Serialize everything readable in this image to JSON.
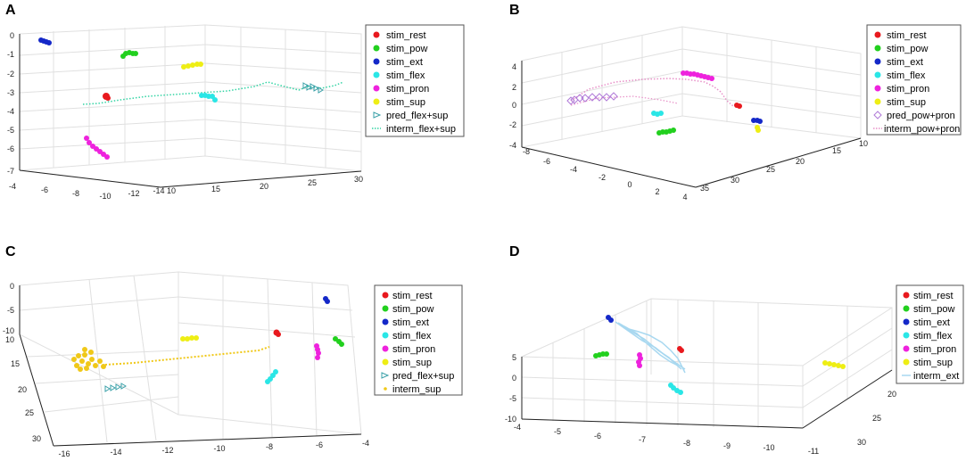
{
  "figure": {
    "description_labels": [
      "A",
      "B",
      "C",
      "D"
    ]
  },
  "chart_data": [
    {
      "panel": "A",
      "type": "scatter3d",
      "legend_position": "right",
      "legend": [
        {
          "label": "stim_rest",
          "color": "#e8191e",
          "marker": "dot"
        },
        {
          "label": "stim_pow",
          "color": "#22d01e",
          "marker": "dot"
        },
        {
          "label": "stim_ext",
          "color": "#1428c8",
          "marker": "dot"
        },
        {
          "label": "stim_flex",
          "color": "#2ae6e6",
          "marker": "dot"
        },
        {
          "label": "stim_pron",
          "color": "#ee22dd",
          "marker": "dot"
        },
        {
          "label": "stim_sup",
          "color": "#eeee14",
          "marker": "dot"
        },
        {
          "label": "pred_flex+sup",
          "color": "#3aa0a8",
          "marker": "triangle"
        },
        {
          "label": "interm_flex+sup",
          "color": "#33d4a4",
          "marker": "dash"
        }
      ],
      "z_ticks": [
        "0",
        "-1",
        "-2",
        "-3",
        "-4",
        "-5",
        "-6",
        "-7"
      ],
      "x_ticks": [
        "-4",
        "-6",
        "-8",
        "-10",
        "-12",
        "-14"
      ],
      "y_ticks": [
        "10",
        "15",
        "20",
        "25",
        "30"
      ]
    },
    {
      "panel": "B",
      "type": "scatter3d",
      "legend_position": "right",
      "legend": [
        {
          "label": "stim_rest",
          "color": "#e8191e",
          "marker": "dot"
        },
        {
          "label": "stim_pow",
          "color": "#22d01e",
          "marker": "dot"
        },
        {
          "label": "stim_ext",
          "color": "#1428c8",
          "marker": "dot"
        },
        {
          "label": "stim_flex",
          "color": "#2ae6e6",
          "marker": "dot"
        },
        {
          "label": "stim_pron",
          "color": "#ee22dd",
          "marker": "dot"
        },
        {
          "label": "stim_sup",
          "color": "#eeee14",
          "marker": "dot"
        },
        {
          "label": "pred_pow+pron",
          "color": "#b07ad8",
          "marker": "diamond"
        },
        {
          "label": "interm_pow+pron",
          "color": "#e890c8",
          "marker": "dash"
        }
      ],
      "z_ticks": [
        "4",
        "2",
        "0",
        "-2",
        "-4"
      ],
      "x_ticks": [
        "-8",
        "-6",
        "-4",
        "-2",
        "0",
        "2",
        "4"
      ],
      "y_ticks": [
        "35",
        "30",
        "25",
        "20",
        "15",
        "10"
      ]
    },
    {
      "panel": "C",
      "type": "scatter3d",
      "legend_position": "right",
      "legend": [
        {
          "label": "stim_rest",
          "color": "#e8191e",
          "marker": "dot"
        },
        {
          "label": "stim_pow",
          "color": "#22d01e",
          "marker": "dot"
        },
        {
          "label": "stim_ext",
          "color": "#1428c8",
          "marker": "dot"
        },
        {
          "label": "stim_flex",
          "color": "#2ae6e6",
          "marker": "dot"
        },
        {
          "label": "stim_pron",
          "color": "#ee22dd",
          "marker": "dot"
        },
        {
          "label": "stim_sup",
          "color": "#eeee14",
          "marker": "dot"
        },
        {
          "label": "pred_flex+sup",
          "color": "#3aa0a8",
          "marker": "triangle"
        },
        {
          "label": "interm_sup",
          "color": "#f0c818",
          "marker": "dash"
        }
      ],
      "z_ticks": [
        "0",
        "-5",
        "-10"
      ],
      "y_ticks": [
        "10",
        "15",
        "20",
        "25",
        "30"
      ],
      "x_ticks": [
        "-16",
        "-14",
        "-12",
        "-10",
        "-8",
        "-6",
        "-4"
      ]
    },
    {
      "panel": "D",
      "type": "scatter3d",
      "legend_position": "right",
      "legend": [
        {
          "label": "stim_rest",
          "color": "#e8191e",
          "marker": "dot"
        },
        {
          "label": "stim_pow",
          "color": "#22d01e",
          "marker": "dot"
        },
        {
          "label": "stim_ext",
          "color": "#1428c8",
          "marker": "dot"
        },
        {
          "label": "stim_flex",
          "color": "#2ae6e6",
          "marker": "dot"
        },
        {
          "label": "stim_pron",
          "color": "#ee22dd",
          "marker": "dot"
        },
        {
          "label": "stim_sup",
          "color": "#eeee14",
          "marker": "dot"
        },
        {
          "label": "interm_ext",
          "color": "#a8d8f0",
          "marker": "dash"
        }
      ],
      "z_ticks": [
        "5",
        "0",
        "-5",
        "-10"
      ],
      "x_ticks": [
        "-4",
        "-5",
        "-6",
        "-7",
        "-8",
        "-9",
        "-10",
        "-11"
      ],
      "y_ticks": [
        "15",
        "20",
        "25",
        "30"
      ]
    }
  ]
}
